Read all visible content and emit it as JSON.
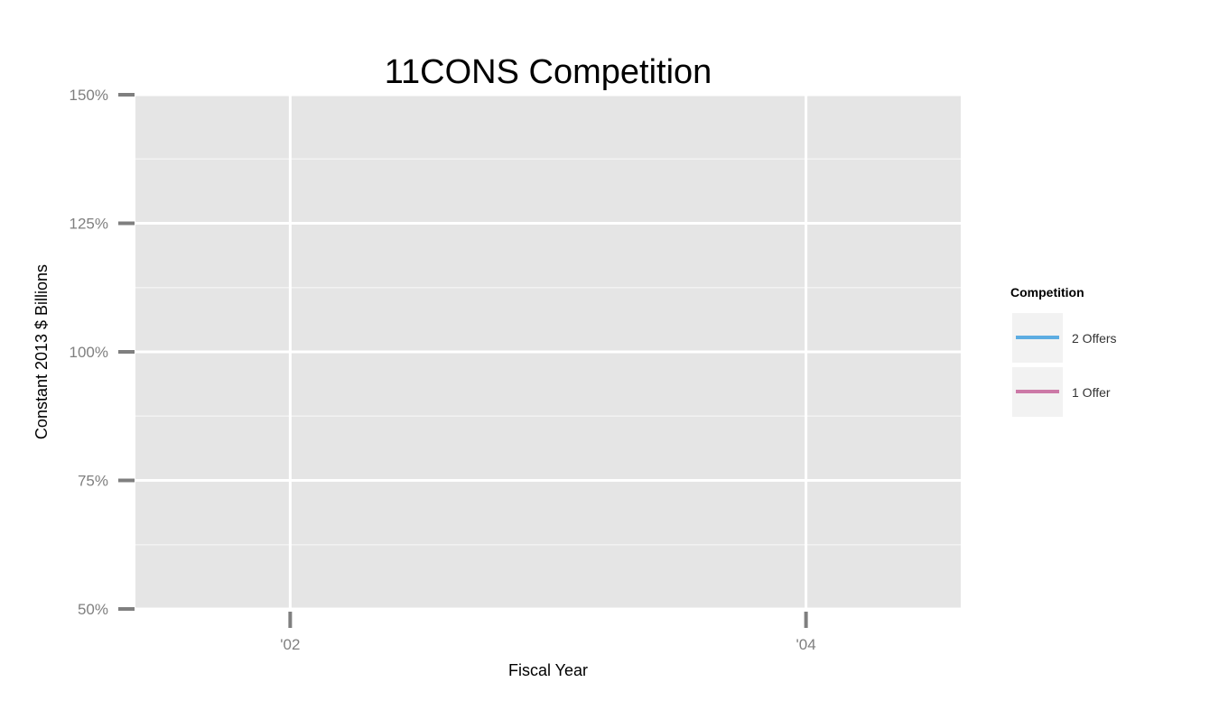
{
  "chart_data": {
    "type": "line",
    "title": "11CONS Competition",
    "xlabel": "Fiscal Year",
    "ylabel": "Constant 2013 $ Billions",
    "x_ticks": [
      {
        "value": 2002,
        "label": "'02"
      },
      {
        "value": 2004,
        "label": "'04"
      }
    ],
    "y_ticks": [
      {
        "value": 0.5,
        "label": "50%"
      },
      {
        "value": 0.75,
        "label": "75%"
      },
      {
        "value": 1.0,
        "label": "100%"
      },
      {
        "value": 1.25,
        "label": "125%"
      },
      {
        "value": 1.5,
        "label": "150%"
      }
    ],
    "xlim": [
      2001.4,
      2004.6
    ],
    "ylim": [
      0.5,
      1.5
    ],
    "grid": true,
    "legend": {
      "title": "Competition",
      "position": "right"
    },
    "series": [
      {
        "name": "2 Offers",
        "color": "#5dade2",
        "values": []
      },
      {
        "name": "1 Offer",
        "color": "#cc79a7",
        "values": []
      }
    ]
  }
}
